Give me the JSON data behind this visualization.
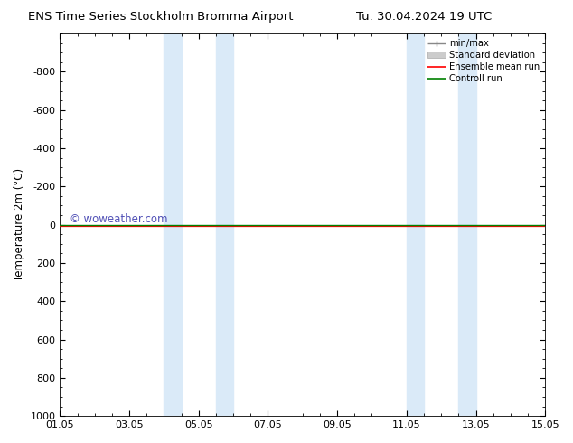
{
  "title_left": "ENS Time Series Stockholm Bromma Airport",
  "title_right": "Tu. 30.04.2024 19 UTC",
  "ylabel": "Temperature 2m (°C)",
  "ylim_top": -1000,
  "ylim_bottom": 1000,
  "yticks": [
    -800,
    -600,
    -400,
    -200,
    0,
    200,
    400,
    600,
    800,
    1000
  ],
  "xtick_labels": [
    "01.05",
    "03.05",
    "05.05",
    "07.05",
    "09.05",
    "11.05",
    "13.05",
    "15.05"
  ],
  "xtick_positions": [
    0,
    2,
    4,
    6,
    8,
    10,
    12,
    14
  ],
  "xlim": [
    0,
    14
  ],
  "blue_shade_regions": [
    [
      3.0,
      3.5
    ],
    [
      4.5,
      5.0
    ],
    [
      10.0,
      10.5
    ],
    [
      11.5,
      12.0
    ]
  ],
  "blue_shade_color": "#daeaf8",
  "ensemble_mean_color": "#ff0000",
  "control_run_color": "#008000",
  "watermark": "© woweather.com",
  "watermark_color": "#3333aa",
  "background_color": "#ffffff",
  "legend_items": [
    "min/max",
    "Standard deviation",
    "Ensemble mean run",
    "Controll run"
  ],
  "minmax_line_color": "#888888",
  "std_fill_color": "#cccccc",
  "title_fontsize": 9.5,
  "axis_fontsize": 8,
  "ylabel_fontsize": 8.5
}
